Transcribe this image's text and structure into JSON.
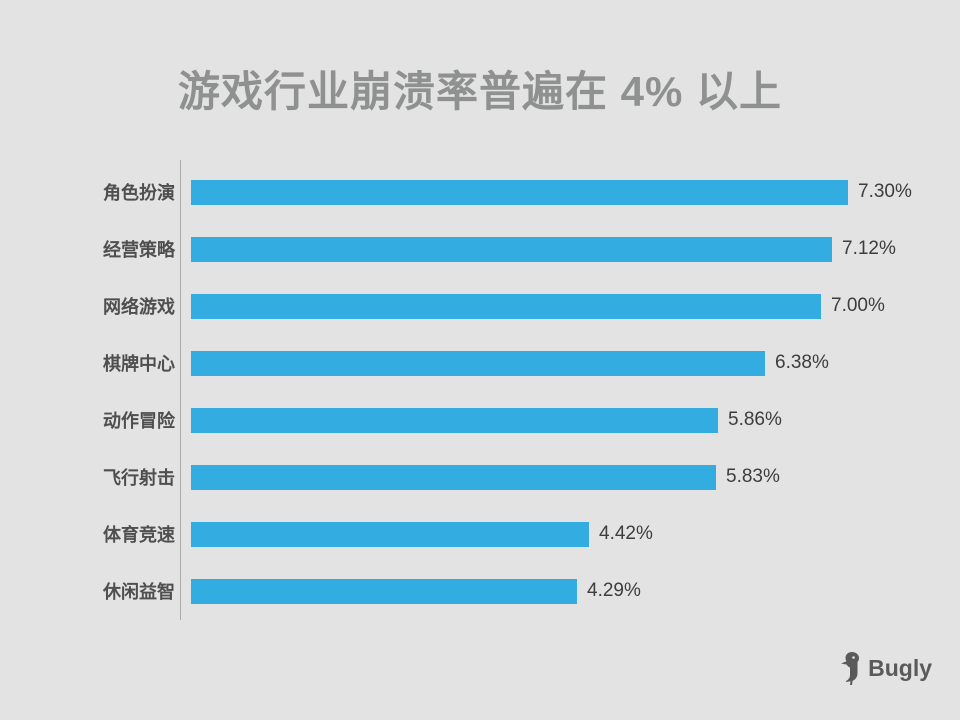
{
  "chart_data": {
    "type": "bar",
    "orientation": "horizontal",
    "title": "游戏行业崩溃率普遍在 4% 以上",
    "categories": [
      "角色扮演",
      "经营策略",
      "网络游戏",
      "棋牌中心",
      "动作冒险",
      "飞行射击",
      "体育竞速",
      "休闲益智"
    ],
    "values": [
      7.3,
      7.12,
      7.0,
      6.38,
      5.86,
      5.83,
      4.42,
      4.29
    ],
    "value_labels": [
      "7.30%",
      "7.12%",
      "7.00%",
      "6.38%",
      "5.86%",
      "5.83%",
      "4.42%",
      "4.29%"
    ],
    "xlabel": "",
    "ylabel": "",
    "xlim": [
      0,
      8
    ],
    "grid": false,
    "legend": false,
    "bar_color": "#33ade1",
    "background_color": "#e2e3e2",
    "title_color": "#8f9190"
  },
  "logo": {
    "text": "Bugly",
    "icon": "woodpecker-bird"
  }
}
